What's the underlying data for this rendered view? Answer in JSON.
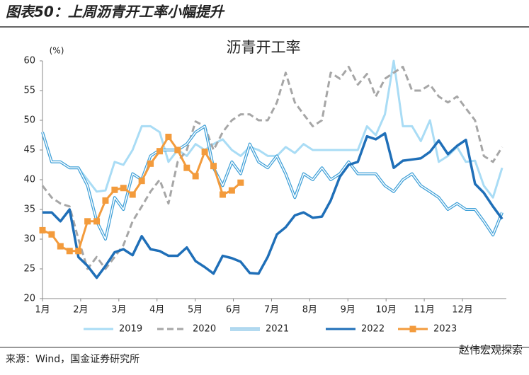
{
  "header": {
    "title": "图表50：上周沥青开工率小幅提升"
  },
  "footer": {
    "source": "来源：Wind，国金证券研究所",
    "watermark": "赵伟宏观探索"
  },
  "chart_data": {
    "type": "line",
    "title": "沥青开工率",
    "y_unit": "(%)",
    "x": [
      1,
      1.24,
      1.47,
      1.71,
      1.94,
      2.18,
      2.42,
      2.65,
      2.89,
      3.12,
      3.36,
      3.6,
      3.83,
      4.07,
      4.3,
      4.54,
      4.78,
      5.01,
      5.25,
      5.48,
      5.72,
      5.96,
      6.19,
      6.43,
      6.66,
      6.9,
      7.14,
      7.37,
      7.61,
      7.84,
      8.08,
      8.32,
      8.55,
      8.79,
      9.02,
      9.26,
      9.5,
      9.73,
      9.97,
      10.2,
      10.44,
      10.68,
      10.91,
      11.15,
      11.38,
      11.62,
      11.86,
      12.09,
      12.33,
      12.56,
      12.8,
      13.04
    ],
    "xlim": [
      1,
      13.15
    ],
    "xticks": [
      {
        "value": 1,
        "label": "1月"
      },
      {
        "value": 2,
        "label": "2月"
      },
      {
        "value": 3,
        "label": "3月"
      },
      {
        "value": 4,
        "label": "4月"
      },
      {
        "value": 5,
        "label": "5月"
      },
      {
        "value": 6,
        "label": "6月"
      },
      {
        "value": 7,
        "label": "7月"
      },
      {
        "value": 8,
        "label": "8月"
      },
      {
        "value": 9,
        "label": "9月"
      },
      {
        "value": 10,
        "label": "10月"
      },
      {
        "value": 11,
        "label": "11月"
      },
      {
        "value": 12,
        "label": "12月"
      }
    ],
    "ylim": [
      20,
      60
    ],
    "yticks": [
      20,
      25,
      30,
      35,
      40,
      45,
      50,
      55,
      60
    ],
    "grid": false,
    "legend": "bottom",
    "series": [
      {
        "name": "2019",
        "color": "#a9dcf5",
        "values": [
          48,
          43,
          43,
          42,
          42,
          40,
          38,
          38.2,
          43,
          42.5,
          45,
          49,
          49,
          48,
          43,
          45,
          44,
          46,
          45,
          46,
          46.8,
          45,
          44,
          45.5,
          45,
          44,
          44,
          45.5,
          44.5,
          46,
          45,
          45,
          45,
          45,
          45,
          45,
          49,
          47.5,
          51,
          60,
          49,
          49,
          46.5,
          50,
          43,
          44,
          45.5,
          43,
          43.2,
          39,
          37,
          42
        ]
      },
      {
        "name": "2020",
        "color": "#a6a6a6",
        "dash": true,
        "values": [
          39,
          37,
          36,
          35.5,
          30,
          25,
          27,
          25,
          27,
          29,
          33,
          35.5,
          38,
          40,
          36,
          43,
          45,
          49.8,
          49,
          45,
          48,
          50,
          51,
          51,
          50,
          50,
          53,
          58,
          53,
          51,
          49,
          50,
          58,
          57,
          59,
          56,
          57.8,
          54,
          57,
          58,
          59,
          55,
          55,
          56,
          54,
          53,
          54,
          52,
          50,
          44,
          43,
          45.5
        ]
      },
      {
        "name": "2021",
        "color": "#3fa0d8",
        "outline": true,
        "values": [
          48,
          43,
          43,
          42,
          42,
          39,
          33,
          30,
          37,
          35,
          41,
          40,
          44,
          45,
          45,
          45,
          46,
          48,
          49,
          42,
          39,
          43,
          41,
          46,
          43,
          42,
          44,
          41,
          37,
          41,
          40,
          42,
          40,
          41,
          43,
          41,
          41,
          41,
          39,
          38,
          40,
          41,
          39,
          38,
          37,
          35,
          36,
          35,
          35,
          33,
          30.7,
          34.5
        ]
      },
      {
        "name": "2022",
        "color": "#1f6fb8",
        "values": [
          34.5,
          34.5,
          33,
          35,
          27,
          25.5,
          23.5,
          25.5,
          27.8,
          28.3,
          27.3,
          30.5,
          28.3,
          28,
          27.2,
          27.2,
          28.6,
          26.3,
          25.3,
          24.2,
          27.2,
          26.8,
          26.2,
          24.3,
          24.2,
          27,
          30.8,
          32,
          34,
          34.5,
          33.6,
          33.8,
          36.5,
          40.5,
          42.5,
          43,
          47.3,
          46.8,
          47.8,
          42,
          43.2,
          43.4,
          43.6,
          44.7,
          46.6,
          44.3,
          45.7,
          46.7,
          39.3,
          37.8,
          35.5,
          33.4
        ]
      },
      {
        "name": "2023",
        "color": "#f39b3c",
        "marker": "square",
        "values": [
          31.5,
          30.8,
          28.8,
          28,
          28,
          33,
          33,
          36.5,
          38.3,
          38.6,
          37.5,
          39.8,
          42.7,
          44.8,
          47.2,
          45,
          42,
          40.6,
          44.7,
          42.3,
          37.5,
          38.2,
          39.5,
          null,
          null,
          null,
          null,
          null,
          null,
          null,
          null,
          null,
          null,
          null,
          null,
          null,
          null,
          null,
          null,
          null,
          null,
          null,
          null,
          null,
          null,
          null,
          null,
          null,
          null,
          null,
          null,
          null
        ]
      }
    ]
  }
}
